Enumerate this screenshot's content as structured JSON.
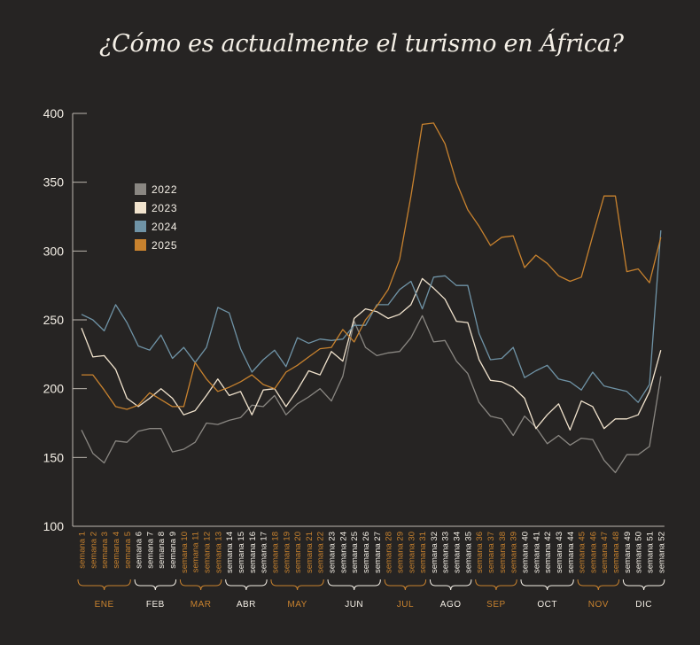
{
  "chart_data": {
    "type": "line",
    "title": "¿Cómo es actualmente el turismo en África?",
    "xlabel": "",
    "ylabel": "",
    "ylim": [
      100,
      400
    ],
    "yticks": [
      100,
      150,
      200,
      250,
      300,
      350,
      400
    ],
    "grid": false,
    "legend_position": "top-left",
    "categories": [
      "semana 1",
      "semana 2",
      "semana 3",
      "semana 4",
      "semana 5",
      "semana 6",
      "semana 7",
      "semana 8",
      "semana 9",
      "semana 10",
      "semana 11",
      "semana 12",
      "semana 13",
      "semana 14",
      "semana 15",
      "semana 16",
      "semana 17",
      "semana 18",
      "semana 19",
      "semana 20",
      "semana 21",
      "semana 22",
      "semana 23",
      "semana 24",
      "semana 25",
      "semana 26",
      "semana 27",
      "semana 28",
      "semana 29",
      "semana 30",
      "semana 31",
      "semana 32",
      "semana 33",
      "semana 34",
      "semana 35",
      "semana 36",
      "semana 37",
      "semana 38",
      "semana 39",
      "semana 40",
      "semana 41",
      "semana 42",
      "semana 43",
      "semana 44",
      "semana 45",
      "semana 46",
      "semana 47",
      "semana 48",
      "semana 49",
      "semana 50",
      "semana 51",
      "semana 52"
    ],
    "months": [
      {
        "label": "ENE",
        "start": 1,
        "end": 5
      },
      {
        "label": "FEB",
        "start": 6,
        "end": 9
      },
      {
        "label": "MAR",
        "start": 10,
        "end": 13
      },
      {
        "label": "ABR",
        "start": 14,
        "end": 17
      },
      {
        "label": "MAY",
        "start": 18,
        "end": 22
      },
      {
        "label": "JUN",
        "start": 23,
        "end": 27
      },
      {
        "label": "JUL",
        "start": 28,
        "end": 31
      },
      {
        "label": "AGO",
        "start": 32,
        "end": 35
      },
      {
        "label": "SEP",
        "start": 36,
        "end": 39
      },
      {
        "label": "OCT",
        "start": 40,
        "end": 44
      },
      {
        "label": "NOV",
        "start": 45,
        "end": 48
      },
      {
        "label": "DIC",
        "start": 49,
        "end": 52
      }
    ],
    "series": [
      {
        "name": "2022",
        "color": "#8a8782",
        "values": [
          170,
          153,
          146,
          162,
          161,
          169,
          171,
          171,
          154,
          156,
          161,
          175,
          174,
          177,
          179,
          188,
          187,
          195,
          181,
          189,
          194,
          200,
          191,
          209,
          249,
          230,
          224,
          226,
          227,
          237,
          253,
          234,
          235,
          220,
          211,
          190,
          180,
          178,
          166,
          180,
          172,
          160,
          166,
          159,
          164,
          163,
          148,
          139,
          152,
          152,
          158,
          209
        ]
      },
      {
        "name": "2023",
        "color": "#f1e3cd",
        "values": [
          244,
          223,
          224,
          214,
          193,
          187,
          193,
          200,
          193,
          181,
          184,
          195,
          207,
          195,
          198,
          181,
          199,
          200,
          187,
          199,
          213,
          210,
          227,
          220,
          251,
          258,
          256,
          251,
          254,
          261,
          280,
          273,
          265,
          249,
          248,
          221,
          206,
          205,
          201,
          193,
          171,
          181,
          189,
          170,
          191,
          187,
          171,
          178,
          178,
          181,
          198,
          228
        ]
      },
      {
        "name": "2024",
        "color": "#6f93a6",
        "values": [
          254,
          250,
          242,
          261,
          248,
          231,
          228,
          239,
          222,
          230,
          219,
          230,
          259,
          255,
          229,
          212,
          221,
          228,
          216,
          237,
          233,
          236,
          235,
          236,
          246,
          246,
          261,
          261,
          272,
          278,
          258,
          281,
          282,
          275,
          275,
          240,
          221,
          222,
          230,
          208,
          213,
          217,
          207,
          205,
          199,
          212,
          202,
          200,
          198,
          190,
          203,
          315
        ]
      },
      {
        "name": "2025",
        "color": "#c8822e",
        "values": [
          210,
          210,
          199,
          187,
          185,
          188,
          197,
          192,
          187,
          187,
          219,
          207,
          198,
          201,
          205,
          210,
          203,
          200,
          212,
          217,
          223,
          229,
          230,
          243,
          234,
          250,
          260,
          272,
          294,
          340,
          392,
          393,
          378,
          350,
          330,
          318,
          304,
          310,
          311,
          288,
          297,
          291,
          282,
          278,
          281,
          311,
          340,
          340,
          285,
          287,
          277,
          310
        ]
      }
    ]
  }
}
